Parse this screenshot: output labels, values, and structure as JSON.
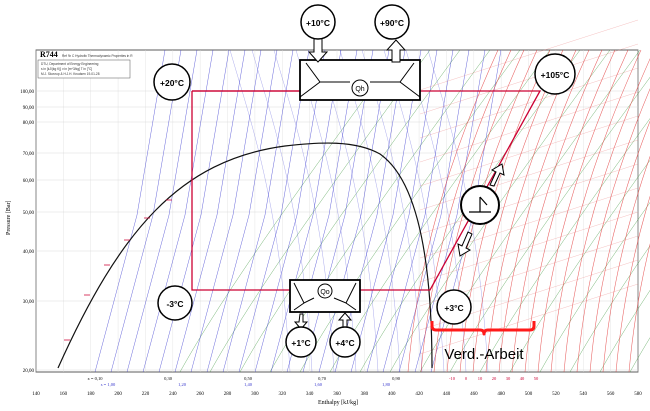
{
  "header": {
    "title": "R744",
    "subtitle": "Ref 'th C Hydrofix  Thermodynamic Properties in R",
    "credit_lines": [
      "DTU, Department of Energy Engineering",
      "s in [kJ/(kg K)]   v in [m^3/kg]   T in [°C]",
      "M.J. Skovrup & H.J.H. Knudsen  19-01-28"
    ]
  },
  "axes": {
    "ylabel": "Pressure [Bar]",
    "xlabel": "Enthalpy [kJ/kg]",
    "y_ticks": [
      "100,00",
      "90,00",
      "80,00",
      "70,00",
      "60,00",
      "50,00",
      "40,00",
      "30,00",
      "20,00"
    ],
    "x_ticks": [
      "140",
      "160",
      "180",
      "200",
      "220",
      "240",
      "260",
      "280",
      "300",
      "320",
      "340",
      "360",
      "380",
      "400",
      "420",
      "440",
      "460",
      "480",
      "500",
      "520",
      "540",
      "560",
      "580"
    ]
  },
  "quality_labels": [
    "x = 0,10",
    "0,30",
    "0,50",
    "0,70",
    "0,90"
  ],
  "entropy_labels": [
    "s = 1,00",
    "1,20",
    "1,40",
    "1,60",
    "1,80"
  ],
  "extra_ticks": [
    "-10",
    "0",
    "10",
    "20",
    "30",
    "40",
    "50"
  ],
  "temps": {
    "t_in_top": "+10°C",
    "t_out_top": "+90°C",
    "t_left_top": "+20°C",
    "t_compressor_out": "+105°C",
    "t_evap": "-3°C",
    "t_suction": "+3°C",
    "t_bottom_in": "+1°C",
    "t_bottom_out": "+4°C"
  },
  "heat_exchangers": {
    "top_label": "Qh",
    "bottom_label": "Qo"
  },
  "compressor_work_label": "Verd.-Arbeit",
  "colors": {
    "cycle": "#cc0033",
    "isotherm": "#2a2acc",
    "isochore": "#2f8f2f",
    "superheat": "#e23a3a",
    "dome": "#111111"
  }
}
